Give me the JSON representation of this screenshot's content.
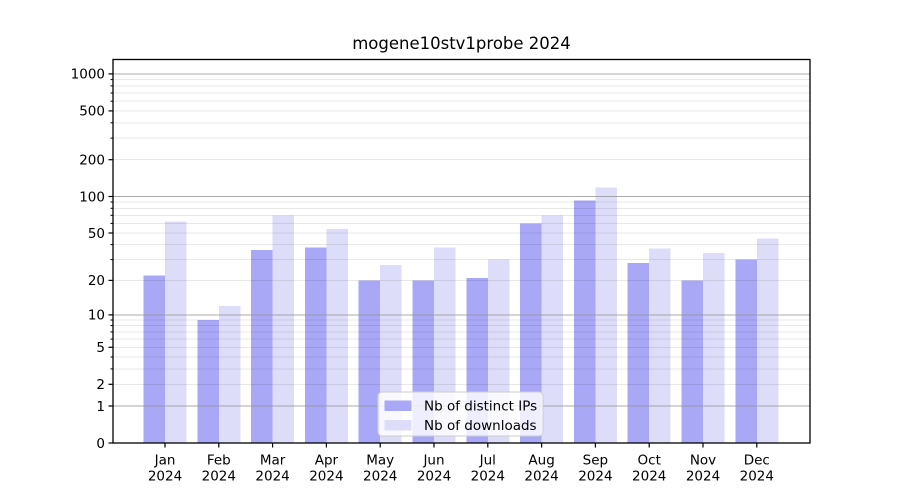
{
  "title": "mogene10stv1probe 2024",
  "chart_data": {
    "type": "bar",
    "title": "mogene10stv1probe 2024",
    "x_months": [
      "Jan",
      "Feb",
      "Mar",
      "Apr",
      "May",
      "Jun",
      "Jul",
      "Aug",
      "Sep",
      "Oct",
      "Nov",
      "Dec"
    ],
    "x_year": "2024",
    "series": [
      {
        "name": "Nb of distinct IPs",
        "color": "#a8a8f7",
        "values": [
          22,
          9,
          36,
          38,
          20,
          20,
          21,
          60,
          93,
          28,
          20,
          30
        ]
      },
      {
        "name": "Nb of downloads",
        "color": "#ddddf9",
        "values": [
          62,
          12,
          70,
          54,
          27,
          38,
          30,
          70,
          118,
          37,
          34,
          45
        ]
      }
    ],
    "yscale": "log1p",
    "ylim": [
      0,
      1300
    ],
    "y_ticks": [
      0,
      1,
      2,
      5,
      10,
      20,
      50,
      100,
      200,
      500,
      1000
    ],
    "y_major_grid": [
      1,
      10,
      100,
      1000
    ],
    "grid": "on",
    "legend_position": "lower center"
  },
  "legend": {
    "entries": [
      {
        "label": "Nb of distinct IPs",
        "color": "#a8a8f7"
      },
      {
        "label": "Nb of downloads",
        "color": "#ddddf9"
      }
    ]
  },
  "colors": {
    "distinct_ips_bar": "#a8a8f7",
    "downloads_bar": "#ddddf9",
    "major_gridline": "rgba(144,144,144,0.76)",
    "minor_gridline": "rgba(0,0,0,0.09)",
    "axis_frame": "#000000",
    "legend_border": "#cccccc",
    "legend_background": "rgba(255,255,255,0.8)",
    "background": "#ffffff"
  }
}
